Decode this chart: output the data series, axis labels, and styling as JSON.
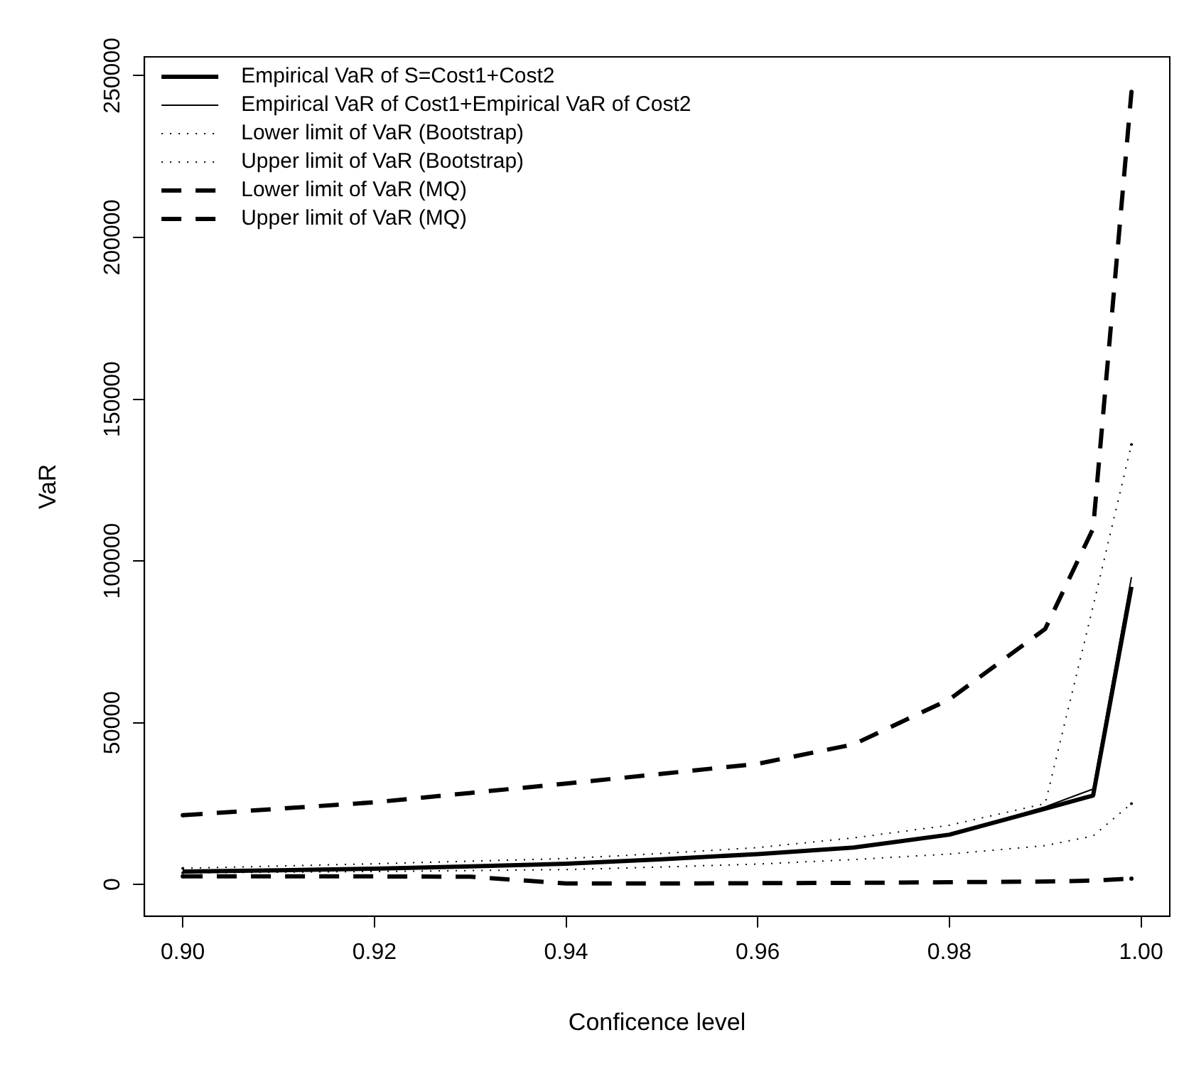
{
  "chart_data": {
    "type": "line",
    "xlabel": "Conficence level",
    "ylabel": "VaR",
    "x": [
      0.9,
      0.91,
      0.92,
      0.93,
      0.94,
      0.95,
      0.96,
      0.97,
      0.98,
      0.99,
      0.995,
      0.999
    ],
    "xlim": [
      0.896,
      1.003
    ],
    "xticks": [
      {
        "value": 0.9,
        "label": "0.90"
      },
      {
        "value": 0.92,
        "label": "0.92"
      },
      {
        "value": 0.94,
        "label": "0.94"
      },
      {
        "value": 0.96,
        "label": "0.96"
      },
      {
        "value": 0.98,
        "label": "0.98"
      },
      {
        "value": 1.0,
        "label": "1.00"
      }
    ],
    "ylim": [
      -9800,
      255800
    ],
    "yticks": [
      0,
      50000,
      100000,
      150000,
      200000,
      250000
    ],
    "grid": false,
    "legend": "top left",
    "marker": "none",
    "series": [
      {
        "name": "Empirical VaR of S=Cost1+Cost2",
        "color": "#000000",
        "line_style": "solid",
        "values": [
          4000,
          4400,
          4900,
          5600,
          6400,
          7800,
          9400,
          11400,
          15400,
          23400,
          27500,
          92000
        ]
      },
      {
        "name": "Empirical VaR of Cost1+Empirical VaR of Cost2",
        "color": "#000000",
        "line_style": "solid",
        "values": [
          4000,
          4400,
          4900,
          5600,
          6400,
          7800,
          9400,
          11400,
          15400,
          24000,
          29500,
          95000
        ]
      },
      {
        "name": "Lower limit of VaR (Bootstrap)",
        "color": "#000000",
        "line_style": "dotted",
        "values": [
          3600,
          3800,
          4000,
          4300,
          4600,
          5400,
          6300,
          7700,
          9400,
          12000,
          15000,
          25000
        ]
      },
      {
        "name": "Upper limit of VaR (Bootstrap)",
        "color": "#000000",
        "line_style": "dotted",
        "values": [
          5000,
          5700,
          6400,
          7200,
          8000,
          9600,
          11400,
          14400,
          18300,
          25000,
          86000,
          136000
        ]
      },
      {
        "name": "Lower limit of VaR (MQ)",
        "color": "#000000",
        "line_style": "dashed",
        "values": [
          2500,
          2500,
          2500,
          2400,
          300,
          300,
          400,
          500,
          700,
          900,
          1200,
          1800
        ]
      },
      {
        "name": "Upper limit of VaR (MQ)",
        "color": "#000000",
        "line_style": "dashed",
        "values": [
          21400,
          23400,
          25400,
          28300,
          31200,
          34200,
          37300,
          43300,
          57200,
          79000,
          110000,
          245000
        ]
      }
    ]
  }
}
